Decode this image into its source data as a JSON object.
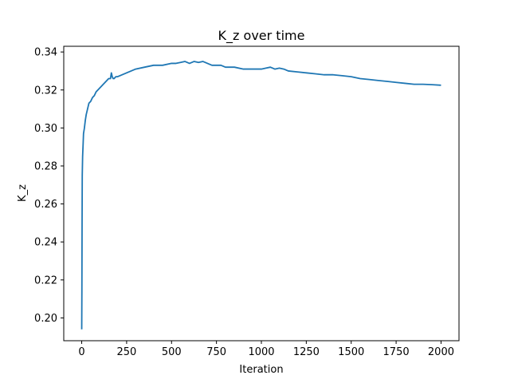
{
  "chart_data": {
    "type": "line",
    "title": "K_z over time",
    "xlabel": "Iteration",
    "ylabel": "K_z",
    "xlim": [
      -100,
      2100
    ],
    "ylim": [
      0.188,
      0.343
    ],
    "xticks": [
      0,
      250,
      500,
      750,
      1000,
      1250,
      1500,
      1750,
      2000
    ],
    "xtick_labels": [
      "0",
      "250",
      "500",
      "750",
      "1000",
      "1250",
      "1500",
      "1750",
      "2000"
    ],
    "yticks": [
      0.2,
      0.22,
      0.24,
      0.26,
      0.28,
      0.3,
      0.32,
      0.34
    ],
    "ytick_labels": [
      "0.20",
      "0.22",
      "0.24",
      "0.26",
      "0.28",
      "0.30",
      "0.32",
      "0.34"
    ],
    "grid": false,
    "legend": "none",
    "series": [
      {
        "color": "#1f77b4",
        "x": [
          0,
          1,
          2,
          3,
          5,
          8,
          10,
          15,
          20,
          25,
          30,
          40,
          50,
          60,
          70,
          80,
          90,
          100,
          110,
          120,
          130,
          140,
          150,
          160,
          165,
          170,
          175,
          180,
          190,
          200,
          225,
          250,
          275,
          300,
          350,
          400,
          450,
          500,
          525,
          550,
          575,
          600,
          625,
          650,
          675,
          700,
          725,
          750,
          775,
          800,
          850,
          900,
          950,
          1000,
          1025,
          1050,
          1075,
          1100,
          1125,
          1150,
          1200,
          1250,
          1300,
          1350,
          1400,
          1450,
          1500,
          1550,
          1600,
          1650,
          1700,
          1750,
          1800,
          1850,
          1900,
          1950,
          2000
        ],
        "y": [
          0.194,
          0.215,
          0.25,
          0.275,
          0.285,
          0.292,
          0.297,
          0.3,
          0.304,
          0.307,
          0.309,
          0.313,
          0.314,
          0.316,
          0.317,
          0.319,
          0.32,
          0.321,
          0.322,
          0.323,
          0.324,
          0.325,
          0.326,
          0.326,
          0.329,
          0.327,
          0.326,
          0.326,
          0.327,
          0.327,
          0.328,
          0.329,
          0.33,
          0.331,
          0.332,
          0.333,
          0.333,
          0.334,
          0.334,
          0.3345,
          0.335,
          0.334,
          0.335,
          0.3345,
          0.335,
          0.334,
          0.333,
          0.333,
          0.333,
          0.332,
          0.332,
          0.331,
          0.331,
          0.331,
          0.3315,
          0.332,
          0.331,
          0.3315,
          0.331,
          0.33,
          0.3295,
          0.329,
          0.3285,
          0.328,
          0.328,
          0.3275,
          0.327,
          0.326,
          0.3255,
          0.325,
          0.3245,
          0.324,
          0.3235,
          0.323,
          0.323,
          0.3228,
          0.3225
        ]
      }
    ]
  }
}
